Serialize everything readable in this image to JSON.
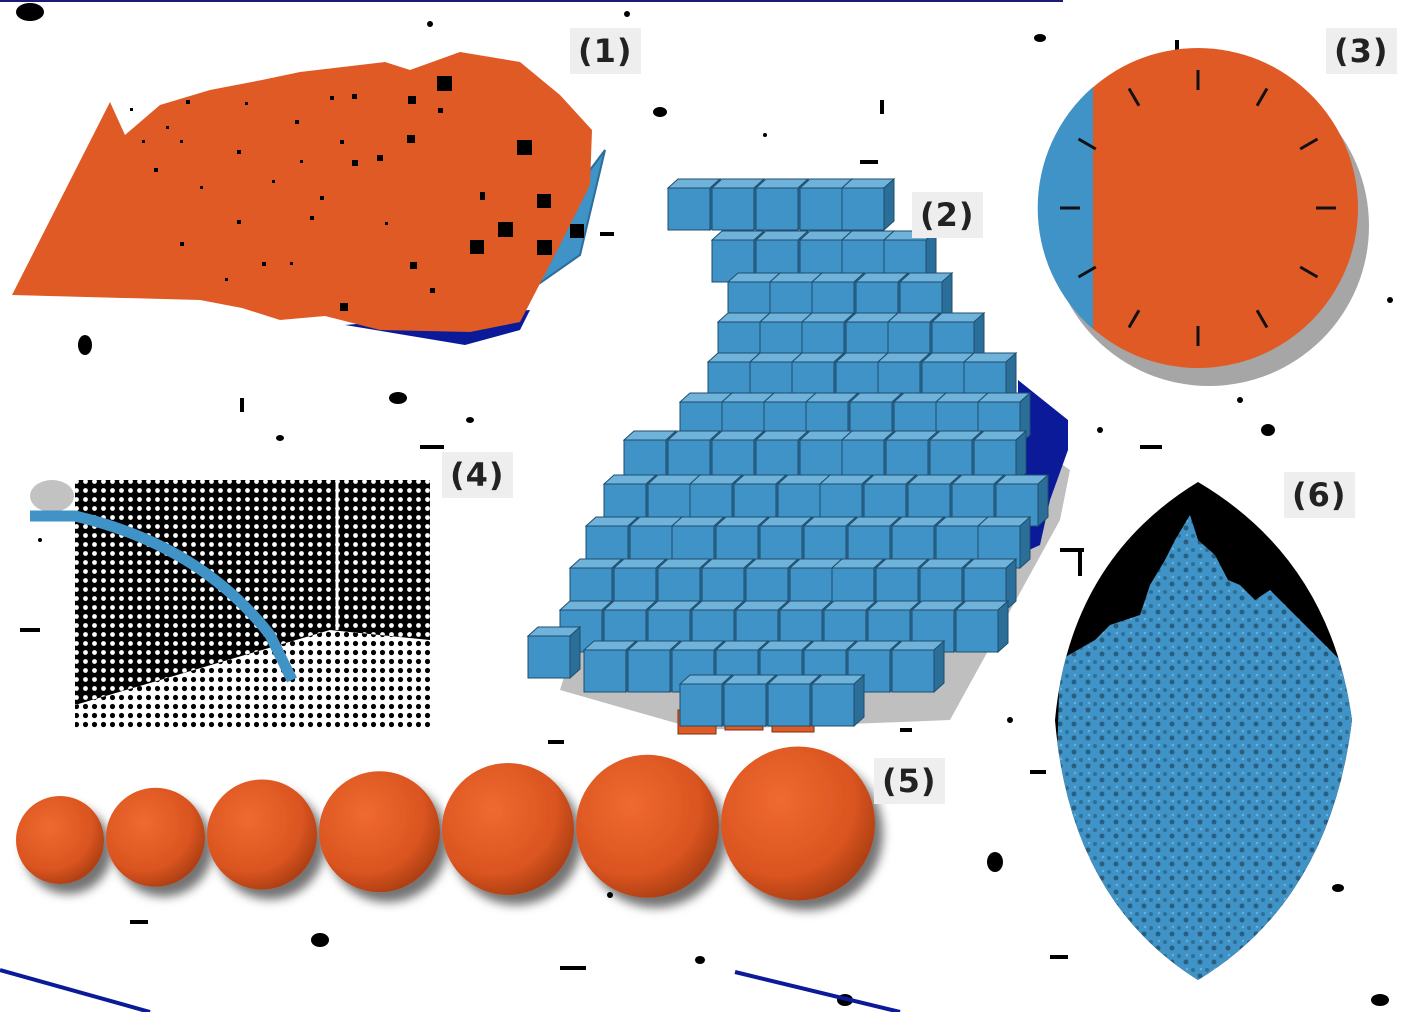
{
  "colors": {
    "orange": "#e05a26",
    "light_blue": "#3f93c6",
    "dark_blue": "#0a1a99",
    "black": "#000000",
    "white": "#ffffff",
    "label_bg": "#eeeeee"
  },
  "panels": [
    {
      "id": "1",
      "label": "(1)",
      "shape": "irregular-polygon-with-squares"
    },
    {
      "id": "2",
      "label": "(2)",
      "shape": "cube-cluster"
    },
    {
      "id": "3",
      "label": "(3)",
      "shape": "clock-disc"
    },
    {
      "id": "4",
      "label": "(4)",
      "shape": "halftone-with-curve"
    },
    {
      "id": "5",
      "label": "(5)",
      "shape": "row-of-spheres",
      "sphere_count": 7
    },
    {
      "id": "6",
      "label": "(6)",
      "shape": "vesica-tree-texture"
    }
  ]
}
